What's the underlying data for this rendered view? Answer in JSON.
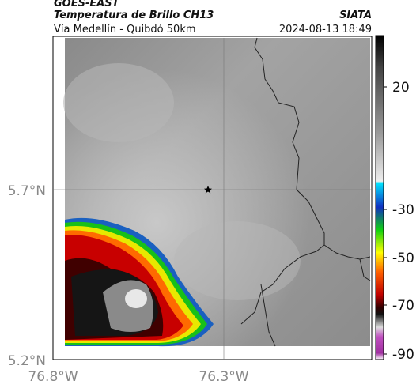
{
  "header": {
    "title": "GOES-EAST",
    "subtitle": "Temperatura de Brillo CH13",
    "source": "SIATA",
    "region": "Vía Medellín - Quibdó 50km",
    "datetime": "2024-08-13 18:49"
  },
  "axes": {
    "lat_ticks": [
      "5.7°N",
      "5.2°N"
    ],
    "lon_ticks": [
      "76.8°W",
      "76.3°W"
    ]
  },
  "colorbar": {
    "ticks": [
      20,
      -30,
      -50,
      -70,
      -90
    ]
  }
}
